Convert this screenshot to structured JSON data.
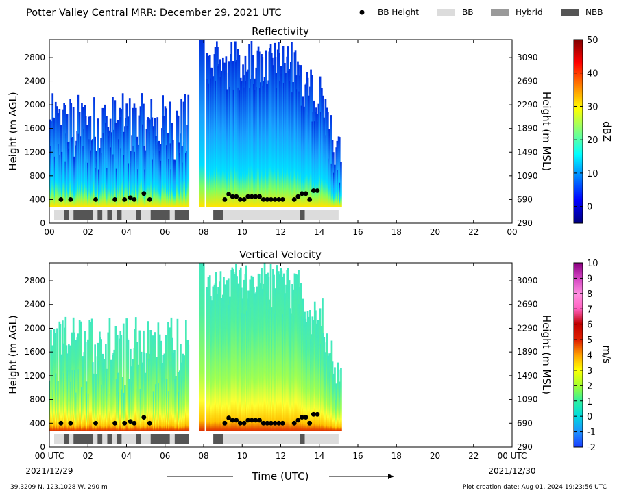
{
  "header": {
    "title": "Potter Valley Central MRR:  December 29, 2021 UTC",
    "legend": [
      {
        "label": "BB Height",
        "kind": "dot",
        "color": "#000000"
      },
      {
        "label": "BB",
        "kind": "bar",
        "color": "#dcdcdc"
      },
      {
        "label": "Hybrid",
        "kind": "bar",
        "color": "#9a9a9a"
      },
      {
        "label": "NBB",
        "kind": "bar",
        "color": "#555555"
      }
    ]
  },
  "footer": {
    "location": "39.3209 N, 123.1028 W, 290 m",
    "creation_date": "Plot creation date: Aug 01, 2024 19:23:56 UTC",
    "xlabel": "Time (UTC)",
    "start_date": "2021/12/29",
    "end_date": "2021/12/30"
  },
  "chart_data": [
    {
      "type": "heatmap",
      "title": "Reflectivity",
      "xlabel": "",
      "ylabel": "Height (m AGL)",
      "ylabel_right": "Height (m MSL)",
      "xlim": [
        0,
        24
      ],
      "ylim": [
        0,
        3100
      ],
      "x_ticks": [
        "00",
        "02",
        "04",
        "06",
        "08",
        "10",
        "12",
        "14",
        "16",
        "18",
        "20",
        "22",
        "00"
      ],
      "y_ticks": [
        0,
        400,
        800,
        1200,
        1600,
        2000,
        2400,
        2800
      ],
      "y_ticks_right": [
        290,
        690,
        1090,
        1490,
        1890,
        2290,
        2690,
        3090
      ],
      "colorbar": {
        "label": "dBZ",
        "min": -5,
        "max": 50,
        "ticks": [
          0,
          10,
          20,
          30,
          40,
          50
        ],
        "colormap": "jet"
      },
      "data_extent_hours": [
        0,
        15.1
      ],
      "bb_height_points": [
        [
          0.6,
          400
        ],
        [
          1.1,
          400
        ],
        [
          2.4,
          400
        ],
        [
          3.4,
          400
        ],
        [
          3.9,
          400
        ],
        [
          4.2,
          430
        ],
        [
          4.4,
          400
        ],
        [
          4.9,
          500
        ],
        [
          5.2,
          400
        ],
        [
          9.1,
          400
        ],
        [
          9.3,
          490
        ],
        [
          9.5,
          450
        ],
        [
          9.7,
          450
        ],
        [
          9.9,
          400
        ],
        [
          10.1,
          400
        ],
        [
          10.3,
          450
        ],
        [
          10.5,
          450
        ],
        [
          10.7,
          450
        ],
        [
          10.9,
          450
        ],
        [
          11.1,
          400
        ],
        [
          11.3,
          400
        ],
        [
          11.5,
          400
        ],
        [
          11.7,
          400
        ],
        [
          11.9,
          400
        ],
        [
          12.1,
          400
        ],
        [
          12.7,
          400
        ],
        [
          12.9,
          450
        ],
        [
          13.1,
          500
        ],
        [
          13.3,
          500
        ],
        [
          13.5,
          400
        ],
        [
          13.7,
          550
        ],
        [
          13.9,
          550
        ]
      ],
      "bb_type_segments": [
        {
          "start": 0.25,
          "end": 0.75,
          "type": "BB"
        },
        {
          "start": 0.75,
          "end": 1.0,
          "type": "NBB"
        },
        {
          "start": 1.0,
          "end": 1.25,
          "type": "BB"
        },
        {
          "start": 1.25,
          "end": 2.25,
          "type": "NBB"
        },
        {
          "start": 2.25,
          "end": 2.5,
          "type": "BB"
        },
        {
          "start": 2.5,
          "end": 2.75,
          "type": "NBB"
        },
        {
          "start": 2.75,
          "end": 3.0,
          "type": "BB"
        },
        {
          "start": 3.0,
          "end": 3.25,
          "type": "NBB"
        },
        {
          "start": 3.25,
          "end": 3.5,
          "type": "BB"
        },
        {
          "start": 3.5,
          "end": 3.75,
          "type": "NBB"
        },
        {
          "start": 3.75,
          "end": 4.5,
          "type": "BB"
        },
        {
          "start": 4.5,
          "end": 4.75,
          "type": "NBB"
        },
        {
          "start": 4.75,
          "end": 5.25,
          "type": "BB"
        },
        {
          "start": 5.25,
          "end": 6.25,
          "type": "NBB"
        },
        {
          "start": 6.25,
          "end": 6.5,
          "type": "BB"
        },
        {
          "start": 6.5,
          "end": 7.25,
          "type": "NBB"
        },
        {
          "start": 8.5,
          "end": 9.0,
          "type": "NBB"
        },
        {
          "start": 9.0,
          "end": 13.0,
          "type": "BB"
        },
        {
          "start": 13.0,
          "end": 13.25,
          "type": "NBB"
        },
        {
          "start": 13.25,
          "end": 15.0,
          "type": "BB"
        }
      ]
    },
    {
      "type": "heatmap",
      "title": "Vertical Velocity",
      "xlabel": "Time (UTC)",
      "ylabel": "Height (m AGL)",
      "ylabel_right": "Height (m MSL)",
      "xlim": [
        0,
        24
      ],
      "ylim": [
        0,
        3100
      ],
      "x_ticks": [
        "00 UTC",
        "02",
        "04",
        "06",
        "08",
        "10",
        "12",
        "14",
        "16",
        "18",
        "20",
        "22",
        "00 UTC"
      ],
      "y_ticks": [
        0,
        400,
        800,
        1200,
        1600,
        2000,
        2400,
        2800
      ],
      "y_ticks_right": [
        290,
        690,
        1090,
        1490,
        1890,
        2290,
        2690,
        3090
      ],
      "colorbar": {
        "label": "m/s",
        "min": -2,
        "max": 10,
        "ticks": [
          -2,
          -1,
          0,
          1,
          2,
          3,
          4,
          5,
          6,
          7,
          8,
          9,
          10
        ],
        "colormap": "custom"
      },
      "data_extent_hours": [
        0,
        15.1
      ],
      "bb_height_points": [
        [
          0.6,
          400
        ],
        [
          1.1,
          400
        ],
        [
          2.4,
          400
        ],
        [
          3.4,
          400
        ],
        [
          3.9,
          400
        ],
        [
          4.2,
          430
        ],
        [
          4.4,
          400
        ],
        [
          4.9,
          500
        ],
        [
          5.2,
          400
        ],
        [
          9.1,
          400
        ],
        [
          9.3,
          490
        ],
        [
          9.5,
          450
        ],
        [
          9.7,
          450
        ],
        [
          9.9,
          400
        ],
        [
          10.1,
          400
        ],
        [
          10.3,
          450
        ],
        [
          10.5,
          450
        ],
        [
          10.7,
          450
        ],
        [
          10.9,
          450
        ],
        [
          11.1,
          400
        ],
        [
          11.3,
          400
        ],
        [
          11.5,
          400
        ],
        [
          11.7,
          400
        ],
        [
          11.9,
          400
        ],
        [
          12.1,
          400
        ],
        [
          12.7,
          400
        ],
        [
          12.9,
          450
        ],
        [
          13.1,
          500
        ],
        [
          13.3,
          500
        ],
        [
          13.5,
          400
        ],
        [
          13.7,
          550
        ],
        [
          13.9,
          550
        ]
      ],
      "bb_type_segments": "same_as_reflectivity"
    }
  ]
}
